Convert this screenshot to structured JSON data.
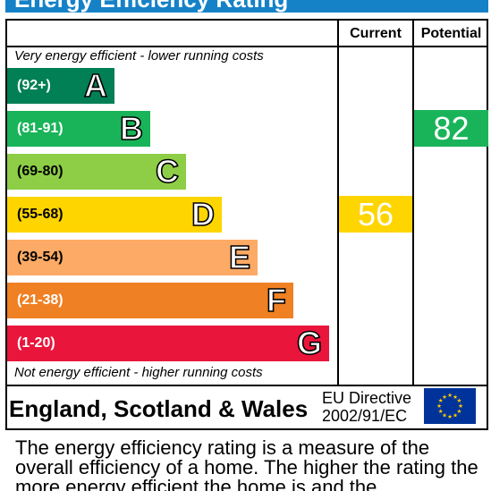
{
  "title": "Energy Efficiency Rating",
  "headers": {
    "current": "Current",
    "potential": "Potential"
  },
  "notes": {
    "top": "Very energy efficient - lower running costs",
    "bottom": "Not energy efficient - higher running costs"
  },
  "colors": {
    "title_bar": "#1582c8",
    "A": "#008054",
    "B": "#19b459",
    "C": "#8dce46",
    "D": "#ffd500",
    "E": "#fcaa65",
    "F": "#ef8023",
    "G": "#e9153b",
    "eu_flag_blue": "#003399",
    "eu_flag_stars": "#ffcc00"
  },
  "chart_data": {
    "type": "bar",
    "title": "Energy Efficiency Rating",
    "categories": [
      "A",
      "B",
      "C",
      "D",
      "E",
      "F",
      "G"
    ],
    "bands": [
      {
        "letter": "A",
        "range": "(92+)",
        "min": 92,
        "max": 100
      },
      {
        "letter": "B",
        "range": "(81-91)",
        "min": 81,
        "max": 91
      },
      {
        "letter": "C",
        "range": "(69-80)",
        "min": 69,
        "max": 80
      },
      {
        "letter": "D",
        "range": "(55-68)",
        "min": 55,
        "max": 68
      },
      {
        "letter": "E",
        "range": "(39-54)",
        "min": 39,
        "max": 54
      },
      {
        "letter": "F",
        "range": "(21-38)",
        "min": 21,
        "max": 38
      },
      {
        "letter": "G",
        "range": "(1-20)",
        "min": 1,
        "max": 20
      }
    ],
    "series": [
      {
        "name": "Current",
        "value": 56,
        "band": "D"
      },
      {
        "name": "Potential",
        "value": 82,
        "band": "B"
      }
    ]
  },
  "footer": {
    "region": "England, Scotland & Wales",
    "directive_line1": "EU Directive",
    "directive_line2": "2002/91/EC",
    "flag_icon": "eu-flag-icon"
  },
  "description": "The energy efficiency rating is a measure of the overall efficiency of a home. The higher the rating the more energy efficient the home is and the"
}
